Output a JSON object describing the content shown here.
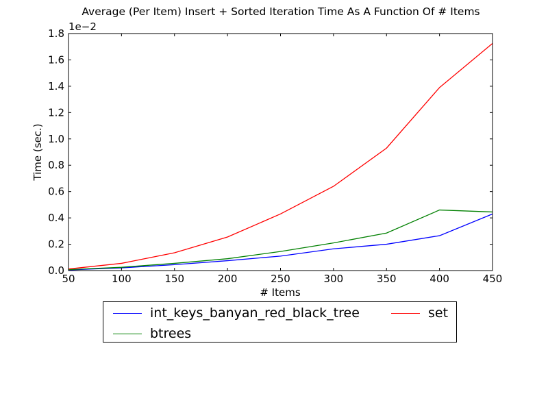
{
  "chart_data": {
    "type": "line",
    "title": "Average (Per Item) Insert + Sorted Iteration Time As A Function Of # Items",
    "xlabel": "# Items",
    "ylabel": "Time (sec.)",
    "y_multiplier_label": "1e−2",
    "x": [
      50,
      100,
      150,
      200,
      250,
      300,
      350,
      400,
      450
    ],
    "xlim": [
      50,
      450
    ],
    "ylim": [
      0.0,
      1.8
    ],
    "x_ticks": [
      "50",
      "100",
      "150",
      "200",
      "250",
      "300",
      "350",
      "400",
      "450"
    ],
    "y_ticks": [
      "0.0",
      "0.2",
      "0.4",
      "0.6",
      "0.8",
      "1.0",
      "1.2",
      "1.4",
      "1.6",
      "1.8"
    ],
    "grid": false,
    "legend_placement": "below",
    "series": [
      {
        "name": "int_keys_banyan_red_black_tree",
        "color": "#0000ff",
        "values": [
          0.005,
          0.02,
          0.045,
          0.075,
          0.11,
          0.165,
          0.2,
          0.265,
          0.43
        ]
      },
      {
        "name": "btrees",
        "color": "#008000",
        "values": [
          0.007,
          0.025,
          0.055,
          0.09,
          0.145,
          0.21,
          0.285,
          0.46,
          0.445
        ]
      },
      {
        "name": "set",
        "color": "#ff0000",
        "values": [
          0.012,
          0.055,
          0.135,
          0.255,
          0.43,
          0.64,
          0.93,
          1.39,
          1.725
        ]
      }
    ]
  }
}
